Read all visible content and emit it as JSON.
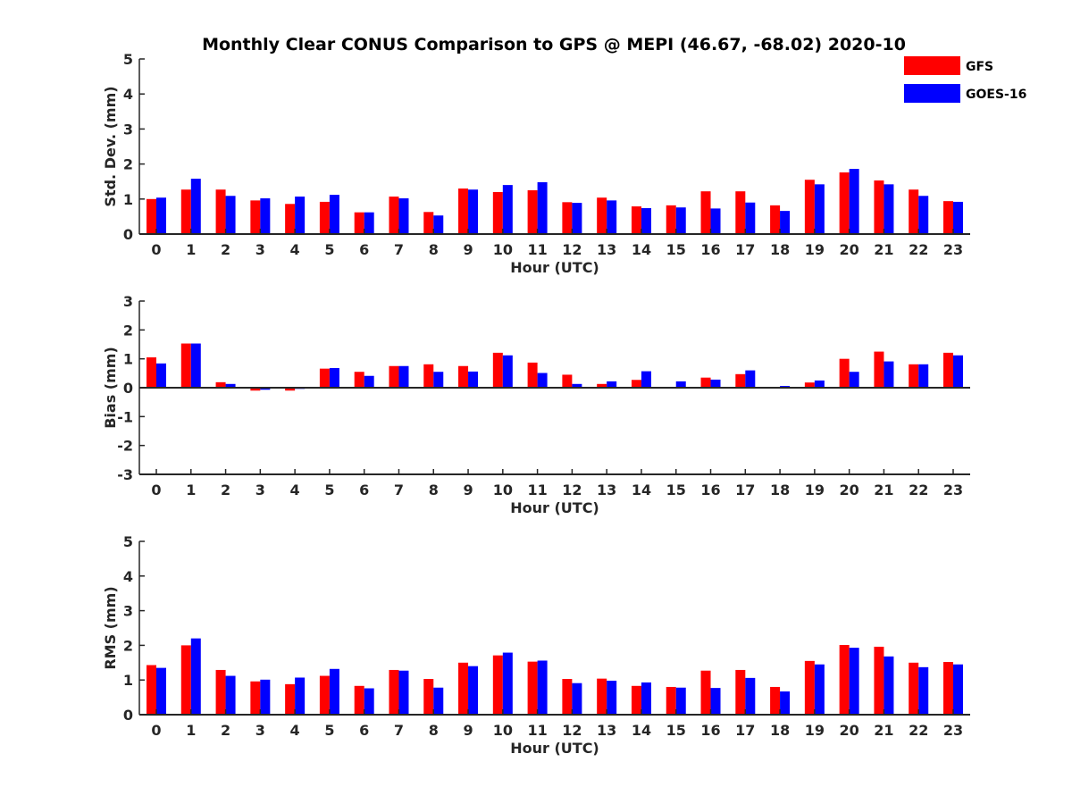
{
  "figure": {
    "title": "Monthly Clear CONUS Comparison to GPS @ MEPI (46.67, -68.02) 2020-10"
  },
  "legend": {
    "placement": "top-right",
    "items": [
      {
        "label": "GFS",
        "color": "#ff0000"
      },
      {
        "label": "GOES-16",
        "color": "#0000ff"
      }
    ]
  },
  "chart_data": [
    {
      "type": "bar",
      "ylabel": "Std. Dev. (mm)",
      "xlabel": "Hour (UTC)",
      "ylim": [
        0,
        5
      ],
      "yticks": [
        "0",
        "1",
        "2",
        "3",
        "4",
        "5"
      ],
      "categories": [
        "0",
        "1",
        "2",
        "3",
        "4",
        "5",
        "6",
        "7",
        "8",
        "9",
        "10",
        "11",
        "12",
        "13",
        "14",
        "15",
        "16",
        "17",
        "18",
        "19",
        "20",
        "21",
        "22",
        "23"
      ],
      "series": [
        {
          "name": "GFS",
          "color": "#ff0000",
          "values": [
            1.0,
            1.27,
            1.27,
            0.96,
            0.86,
            0.92,
            0.62,
            1.07,
            0.63,
            1.3,
            1.2,
            1.25,
            0.91,
            1.04,
            0.79,
            0.82,
            1.22,
            1.22,
            0.82,
            1.55,
            1.76,
            1.53,
            1.27,
            0.94
          ]
        },
        {
          "name": "GOES-16",
          "color": "#0000ff",
          "values": [
            1.04,
            1.58,
            1.09,
            1.02,
            1.07,
            1.12,
            0.62,
            1.02,
            0.53,
            1.27,
            1.4,
            1.48,
            0.89,
            0.96,
            0.74,
            0.76,
            0.73,
            0.9,
            0.66,
            1.42,
            1.86,
            1.42,
            1.09,
            0.92
          ]
        }
      ]
    },
    {
      "type": "bar",
      "ylabel": "Bias (mm)",
      "xlabel": "Hour (UTC)",
      "ylim": [
        -3,
        3
      ],
      "yticks": [
        "-3",
        "-2",
        "-1",
        "0",
        "1",
        "2",
        "3"
      ],
      "categories": [
        "0",
        "1",
        "2",
        "3",
        "4",
        "5",
        "6",
        "7",
        "8",
        "9",
        "10",
        "11",
        "12",
        "13",
        "14",
        "15",
        "16",
        "17",
        "18",
        "19",
        "20",
        "21",
        "22",
        "23"
      ],
      "series": [
        {
          "name": "GFS",
          "color": "#ff0000",
          "values": [
            1.05,
            1.53,
            0.19,
            -0.1,
            -0.1,
            0.66,
            0.55,
            0.75,
            0.81,
            0.75,
            1.21,
            0.87,
            0.45,
            0.13,
            0.27,
            -0.03,
            0.35,
            0.47,
            -0.03,
            0.18,
            1.0,
            1.25,
            0.81,
            1.21
          ]
        },
        {
          "name": "GOES-16",
          "color": "#0000ff",
          "values": [
            0.84,
            1.53,
            0.13,
            -0.07,
            -0.04,
            0.68,
            0.41,
            0.75,
            0.55,
            0.56,
            1.12,
            0.51,
            0.13,
            0.22,
            0.57,
            0.22,
            0.28,
            0.6,
            0.06,
            0.25,
            0.55,
            0.91,
            0.81,
            1.12
          ]
        }
      ]
    },
    {
      "type": "bar",
      "ylabel": "RMS (mm)",
      "xlabel": "Hour (UTC)",
      "ylim": [
        0,
        5
      ],
      "yticks": [
        "0",
        "1",
        "2",
        "3",
        "4",
        "5"
      ],
      "categories": [
        "0",
        "1",
        "2",
        "3",
        "4",
        "5",
        "6",
        "7",
        "8",
        "9",
        "10",
        "11",
        "12",
        "13",
        "14",
        "15",
        "16",
        "17",
        "18",
        "19",
        "20",
        "21",
        "22",
        "23"
      ],
      "series": [
        {
          "name": "GFS",
          "color": "#ff0000",
          "values": [
            1.43,
            2.0,
            1.29,
            0.96,
            0.88,
            1.12,
            0.83,
            1.29,
            1.03,
            1.5,
            1.71,
            1.53,
            1.03,
            1.04,
            0.83,
            0.8,
            1.27,
            1.29,
            0.8,
            1.55,
            2.01,
            1.96,
            1.5,
            1.52
          ]
        },
        {
          "name": "GOES-16",
          "color": "#0000ff",
          "values": [
            1.35,
            2.2,
            1.12,
            1.01,
            1.07,
            1.32,
            0.76,
            1.27,
            0.78,
            1.4,
            1.79,
            1.56,
            0.91,
            0.98,
            0.93,
            0.78,
            0.77,
            1.06,
            0.67,
            1.45,
            1.93,
            1.68,
            1.37,
            1.45
          ]
        }
      ]
    }
  ]
}
